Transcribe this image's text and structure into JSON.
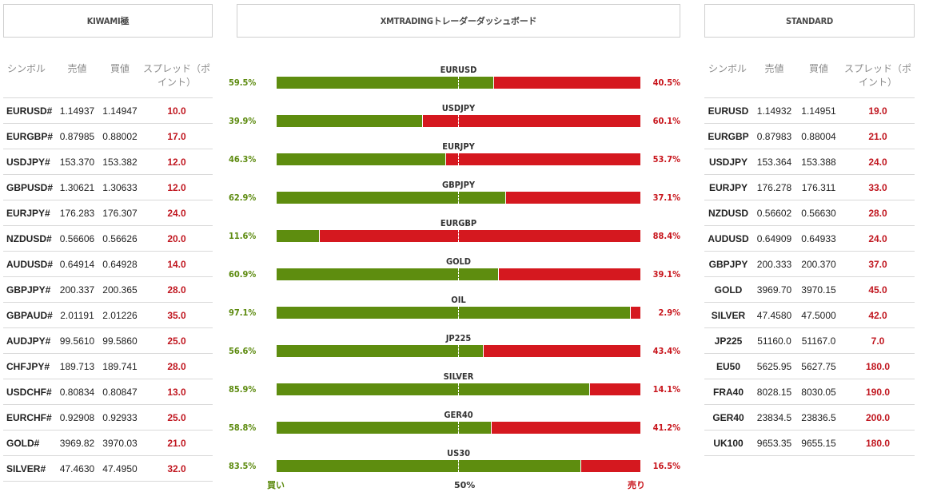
{
  "headers": {
    "left": "KIWAMI極",
    "middle": "XMTRADINGトレーダーダッシュボード",
    "right": "STANDARD"
  },
  "columns": {
    "symbol": "シンボル",
    "bid": "売値",
    "ask": "買値",
    "spread": "スプレッド（ポイント）"
  },
  "kiwami": [
    {
      "symbol": "EURUSD#",
      "bid": "1.14937",
      "ask": "1.14947",
      "spread": "10.0"
    },
    {
      "symbol": "EURGBP#",
      "bid": "0.87985",
      "ask": "0.88002",
      "spread": "17.0"
    },
    {
      "symbol": "USDJPY#",
      "bid": "153.370",
      "ask": "153.382",
      "spread": "12.0"
    },
    {
      "symbol": "GBPUSD#",
      "bid": "1.30621",
      "ask": "1.30633",
      "spread": "12.0"
    },
    {
      "symbol": "EURJPY#",
      "bid": "176.283",
      "ask": "176.307",
      "spread": "24.0"
    },
    {
      "symbol": "NZDUSD#",
      "bid": "0.56606",
      "ask": "0.56626",
      "spread": "20.0"
    },
    {
      "symbol": "AUDUSD#",
      "bid": "0.64914",
      "ask": "0.64928",
      "spread": "14.0"
    },
    {
      "symbol": "GBPJPY#",
      "bid": "200.337",
      "ask": "200.365",
      "spread": "28.0"
    },
    {
      "symbol": "GBPAUD#",
      "bid": "2.01191",
      "ask": "2.01226",
      "spread": "35.0"
    },
    {
      "symbol": "AUDJPY#",
      "bid": "99.5610",
      "ask": "99.5860",
      "spread": "25.0"
    },
    {
      "symbol": "CHFJPY#",
      "bid": "189.713",
      "ask": "189.741",
      "spread": "28.0"
    },
    {
      "symbol": "USDCHF#",
      "bid": "0.80834",
      "ask": "0.80847",
      "spread": "13.0"
    },
    {
      "symbol": "EURCHF#",
      "bid": "0.92908",
      "ask": "0.92933",
      "spread": "25.0"
    },
    {
      "symbol": "GOLD#",
      "bid": "3969.82",
      "ask": "3970.03",
      "spread": "21.0"
    },
    {
      "symbol": "SILVER#",
      "bid": "47.4630",
      "ask": "47.4950",
      "spread": "32.0"
    }
  ],
  "standard": [
    {
      "symbol": "EURUSD",
      "bid": "1.14932",
      "ask": "1.14951",
      "spread": "19.0"
    },
    {
      "symbol": "EURGBP",
      "bid": "0.87983",
      "ask": "0.88004",
      "spread": "21.0"
    },
    {
      "symbol": "USDJPY",
      "bid": "153.364",
      "ask": "153.388",
      "spread": "24.0"
    },
    {
      "symbol": "EURJPY",
      "bid": "176.278",
      "ask": "176.311",
      "spread": "33.0"
    },
    {
      "symbol": "NZDUSD",
      "bid": "0.56602",
      "ask": "0.56630",
      "spread": "28.0"
    },
    {
      "symbol": "AUDUSD",
      "bid": "0.64909",
      "ask": "0.64933",
      "spread": "24.0"
    },
    {
      "symbol": "GBPJPY",
      "bid": "200.333",
      "ask": "200.370",
      "spread": "37.0"
    },
    {
      "symbol": "GOLD",
      "bid": "3969.70",
      "ask": "3970.15",
      "spread": "45.0"
    },
    {
      "symbol": "SILVER",
      "bid": "47.4580",
      "ask": "47.5000",
      "spread": "42.0"
    },
    {
      "symbol": "JP225",
      "bid": "51160.0",
      "ask": "51167.0",
      "spread": "7.0"
    },
    {
      "symbol": "EU50",
      "bid": "5625.95",
      "ask": "5627.75",
      "spread": "180.0"
    },
    {
      "symbol": "FRA40",
      "bid": "8028.15",
      "ask": "8030.05",
      "spread": "190.0"
    },
    {
      "symbol": "GER40",
      "bid": "23834.5",
      "ask": "23836.5",
      "spread": "200.0"
    },
    {
      "symbol": "UK100",
      "bid": "9653.35",
      "ask": "9655.15",
      "spread": "180.0"
    }
  ],
  "sentiment": [
    {
      "pair": "EURUSD",
      "buy": "59.5%",
      "sell": "40.5%",
      "buy_value": 59.5
    },
    {
      "pair": "USDJPY",
      "buy": "39.9%",
      "sell": "60.1%",
      "buy_value": 39.9
    },
    {
      "pair": "EURJPY",
      "buy": "46.3%",
      "sell": "53.7%",
      "buy_value": 46.3
    },
    {
      "pair": "GBPJPY",
      "buy": "62.9%",
      "sell": "37.1%",
      "buy_value": 62.9
    },
    {
      "pair": "EURGBP",
      "buy": "11.6%",
      "sell": "88.4%",
      "buy_value": 11.6
    },
    {
      "pair": "GOLD",
      "buy": "60.9%",
      "sell": "39.1%",
      "buy_value": 60.9
    },
    {
      "pair": "OIL",
      "buy": "97.1%",
      "sell": "2.9%",
      "buy_value": 97.1
    },
    {
      "pair": "JP225",
      "buy": "56.6%",
      "sell": "43.4%",
      "buy_value": 56.6
    },
    {
      "pair": "SILVER",
      "buy": "85.9%",
      "sell": "14.1%",
      "buy_value": 85.9
    },
    {
      "pair": "GER40",
      "buy": "58.8%",
      "sell": "41.2%",
      "buy_value": 58.8
    },
    {
      "pair": "US30",
      "buy": "83.5%",
      "sell": "16.5%",
      "buy_value": 83.5
    }
  ],
  "footer": {
    "buy": "買い",
    "mid": "50%",
    "sell": "売り"
  },
  "colors": {
    "buy": "#5e8d0f",
    "sell": "#d5181f",
    "spread": "#c0161f"
  }
}
